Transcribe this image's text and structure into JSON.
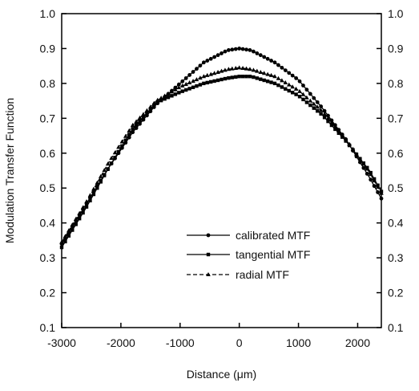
{
  "chart_data": {
    "type": "line",
    "title": "",
    "xlabel": "Distance (μm)",
    "ylabel": "Modulation Transfer Function",
    "xlim": [
      -3000,
      2400
    ],
    "ylim": [
      0.1,
      1.0
    ],
    "x_ticks": [
      "-3000",
      "-2000",
      "-1000",
      "0",
      "1000",
      "2000"
    ],
    "y_ticks": [
      "0.1",
      "0.2",
      "0.3",
      "0.4",
      "0.5",
      "0.6",
      "0.7",
      "0.8",
      "0.9",
      "1.0"
    ],
    "y_ticks_right": [
      "0.1",
      "0.2",
      "0.3",
      "0.4",
      "0.5",
      "0.6",
      "0.7",
      "0.8",
      "0.9",
      "1.0"
    ],
    "grid": false,
    "legend_position": "lower-center",
    "series": [
      {
        "name": "calibrated MTF",
        "marker": "circle",
        "line_style": "solid",
        "x": [
          -3000,
          -2600,
          -2200,
          -1800,
          -1400,
          -1000,
          -600,
          -200,
          0,
          200,
          600,
          1000,
          1400,
          1800,
          2200,
          2400
        ],
        "y": [
          0.34,
          0.45,
          0.56,
          0.66,
          0.74,
          0.8,
          0.86,
          0.895,
          0.9,
          0.895,
          0.86,
          0.81,
          0.73,
          0.64,
          0.53,
          0.47
        ]
      },
      {
        "name": "tangential MTF",
        "marker": "square",
        "line_style": "solid",
        "x": [
          -3000,
          -2600,
          -2200,
          -1800,
          -1400,
          -1000,
          -600,
          -200,
          0,
          200,
          600,
          1000,
          1400,
          1800,
          2200,
          2400
        ],
        "y": [
          0.33,
          0.44,
          0.56,
          0.67,
          0.745,
          0.775,
          0.8,
          0.815,
          0.82,
          0.82,
          0.8,
          0.765,
          0.71,
          0.635,
          0.55,
          0.49
        ]
      },
      {
        "name": "radial MTF",
        "marker": "triangle",
        "line_style": "dashed",
        "x": [
          -3000,
          -2600,
          -2200,
          -1800,
          -1400,
          -1000,
          -600,
          -200,
          0,
          200,
          600,
          1000,
          1400,
          1800,
          2200,
          2400
        ],
        "y": [
          0.345,
          0.455,
          0.575,
          0.68,
          0.75,
          0.79,
          0.82,
          0.84,
          0.845,
          0.84,
          0.82,
          0.78,
          0.72,
          0.64,
          0.545,
          0.485
        ]
      }
    ]
  }
}
